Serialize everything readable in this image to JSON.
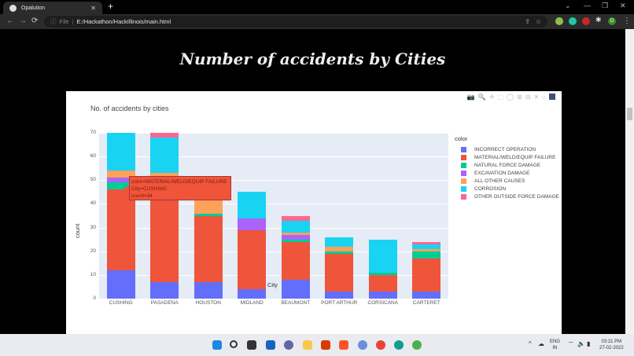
{
  "browser": {
    "tab_title": "Opalution",
    "tab_close": "✕",
    "new_tab": "+",
    "window_controls": {
      "dropdown": "⌄",
      "minimize": "—",
      "maximize": "❐",
      "close": "✕"
    },
    "nav": {
      "back": "←",
      "forward": "→",
      "reload": "⟳"
    },
    "omnibox": {
      "info_icon": "ⓘ",
      "scheme_label": "File",
      "separator": "|",
      "url": "E:/Hackathon/HackIllinois/main.html"
    },
    "right_icons": {
      "share": "⇪",
      "bookmark": "☆",
      "profile": "D",
      "menu": "⋮"
    }
  },
  "page": {
    "heading": "Number of accidents by Cities"
  },
  "chart": {
    "title": "No. of accidents by cities",
    "modebar": [
      "📷",
      "🔍",
      "✛",
      "⬚",
      "◯",
      "⊞",
      "⊟",
      "✕",
      "⌂"
    ],
    "y_ticks": [
      "0",
      "10",
      "20",
      "30",
      "40",
      "50",
      "60",
      "70"
    ],
    "ylabel": "count",
    "xlabel": "City",
    "legend_title": "color",
    "tooltip": {
      "line1": "color=MATERIAL/WELD/EQUIP FAILURE",
      "line2": "City=CUSHING",
      "line3": "count=34"
    }
  },
  "chart_data": {
    "type": "bar",
    "barmode": "stack",
    "title": "No. of accidents by cities",
    "xlabel": "City",
    "ylabel": "count",
    "ylim": [
      0,
      70
    ],
    "grid": true,
    "legend_position": "right",
    "legend_title": "color",
    "categories": [
      "CUSHING",
      "PASADENA",
      "HOUSTON",
      "MIDLAND",
      "BEAUMONT",
      "PORT ARTHUR",
      "CORSICANA",
      "CARTERET"
    ],
    "series": [
      {
        "name": "INCORRECT OPERATION",
        "color": "#636efa",
        "values": [
          12,
          7,
          7,
          4,
          8,
          3,
          3,
          3
        ]
      },
      {
        "name": "MATERIAL/WELD/EQUIP FAILURE",
        "color": "#ef553b",
        "values": [
          34,
          44,
          28,
          25,
          16,
          16,
          7,
          14
        ]
      },
      {
        "name": "NATURAL FORCE DAMAGE",
        "color": "#00cc96",
        "values": [
          3,
          0,
          1,
          0,
          1,
          1,
          1,
          3
        ]
      },
      {
        "name": "EXCAVATION DAMAGE",
        "color": "#ab63fa",
        "values": [
          2,
          0,
          0,
          5,
          2,
          0,
          0,
          0
        ]
      },
      {
        "name": "ALL OTHER CAUSES",
        "color": "#ffa15a",
        "values": [
          3,
          2,
          9,
          0,
          1,
          2,
          0,
          1
        ]
      },
      {
        "name": "CORROSION",
        "color": "#19d3f3",
        "values": [
          16,
          15,
          0,
          11,
          5,
          4,
          14,
          2
        ]
      },
      {
        "name": "OTHER OUTSIDE FORCE DAMAGE",
        "color": "#ff6692",
        "values": [
          0,
          2,
          0,
          0,
          2,
          0,
          0,
          1
        ]
      }
    ],
    "annotations": [
      "Hover tooltip: color=MATERIAL/WELD/EQUIP FAILURE, City=CUSHING, count=34"
    ]
  },
  "taskbar": {
    "lang_line1": "ENG",
    "lang_line2": "IN",
    "time": "03:21 PM",
    "date": "27-02-2022"
  }
}
